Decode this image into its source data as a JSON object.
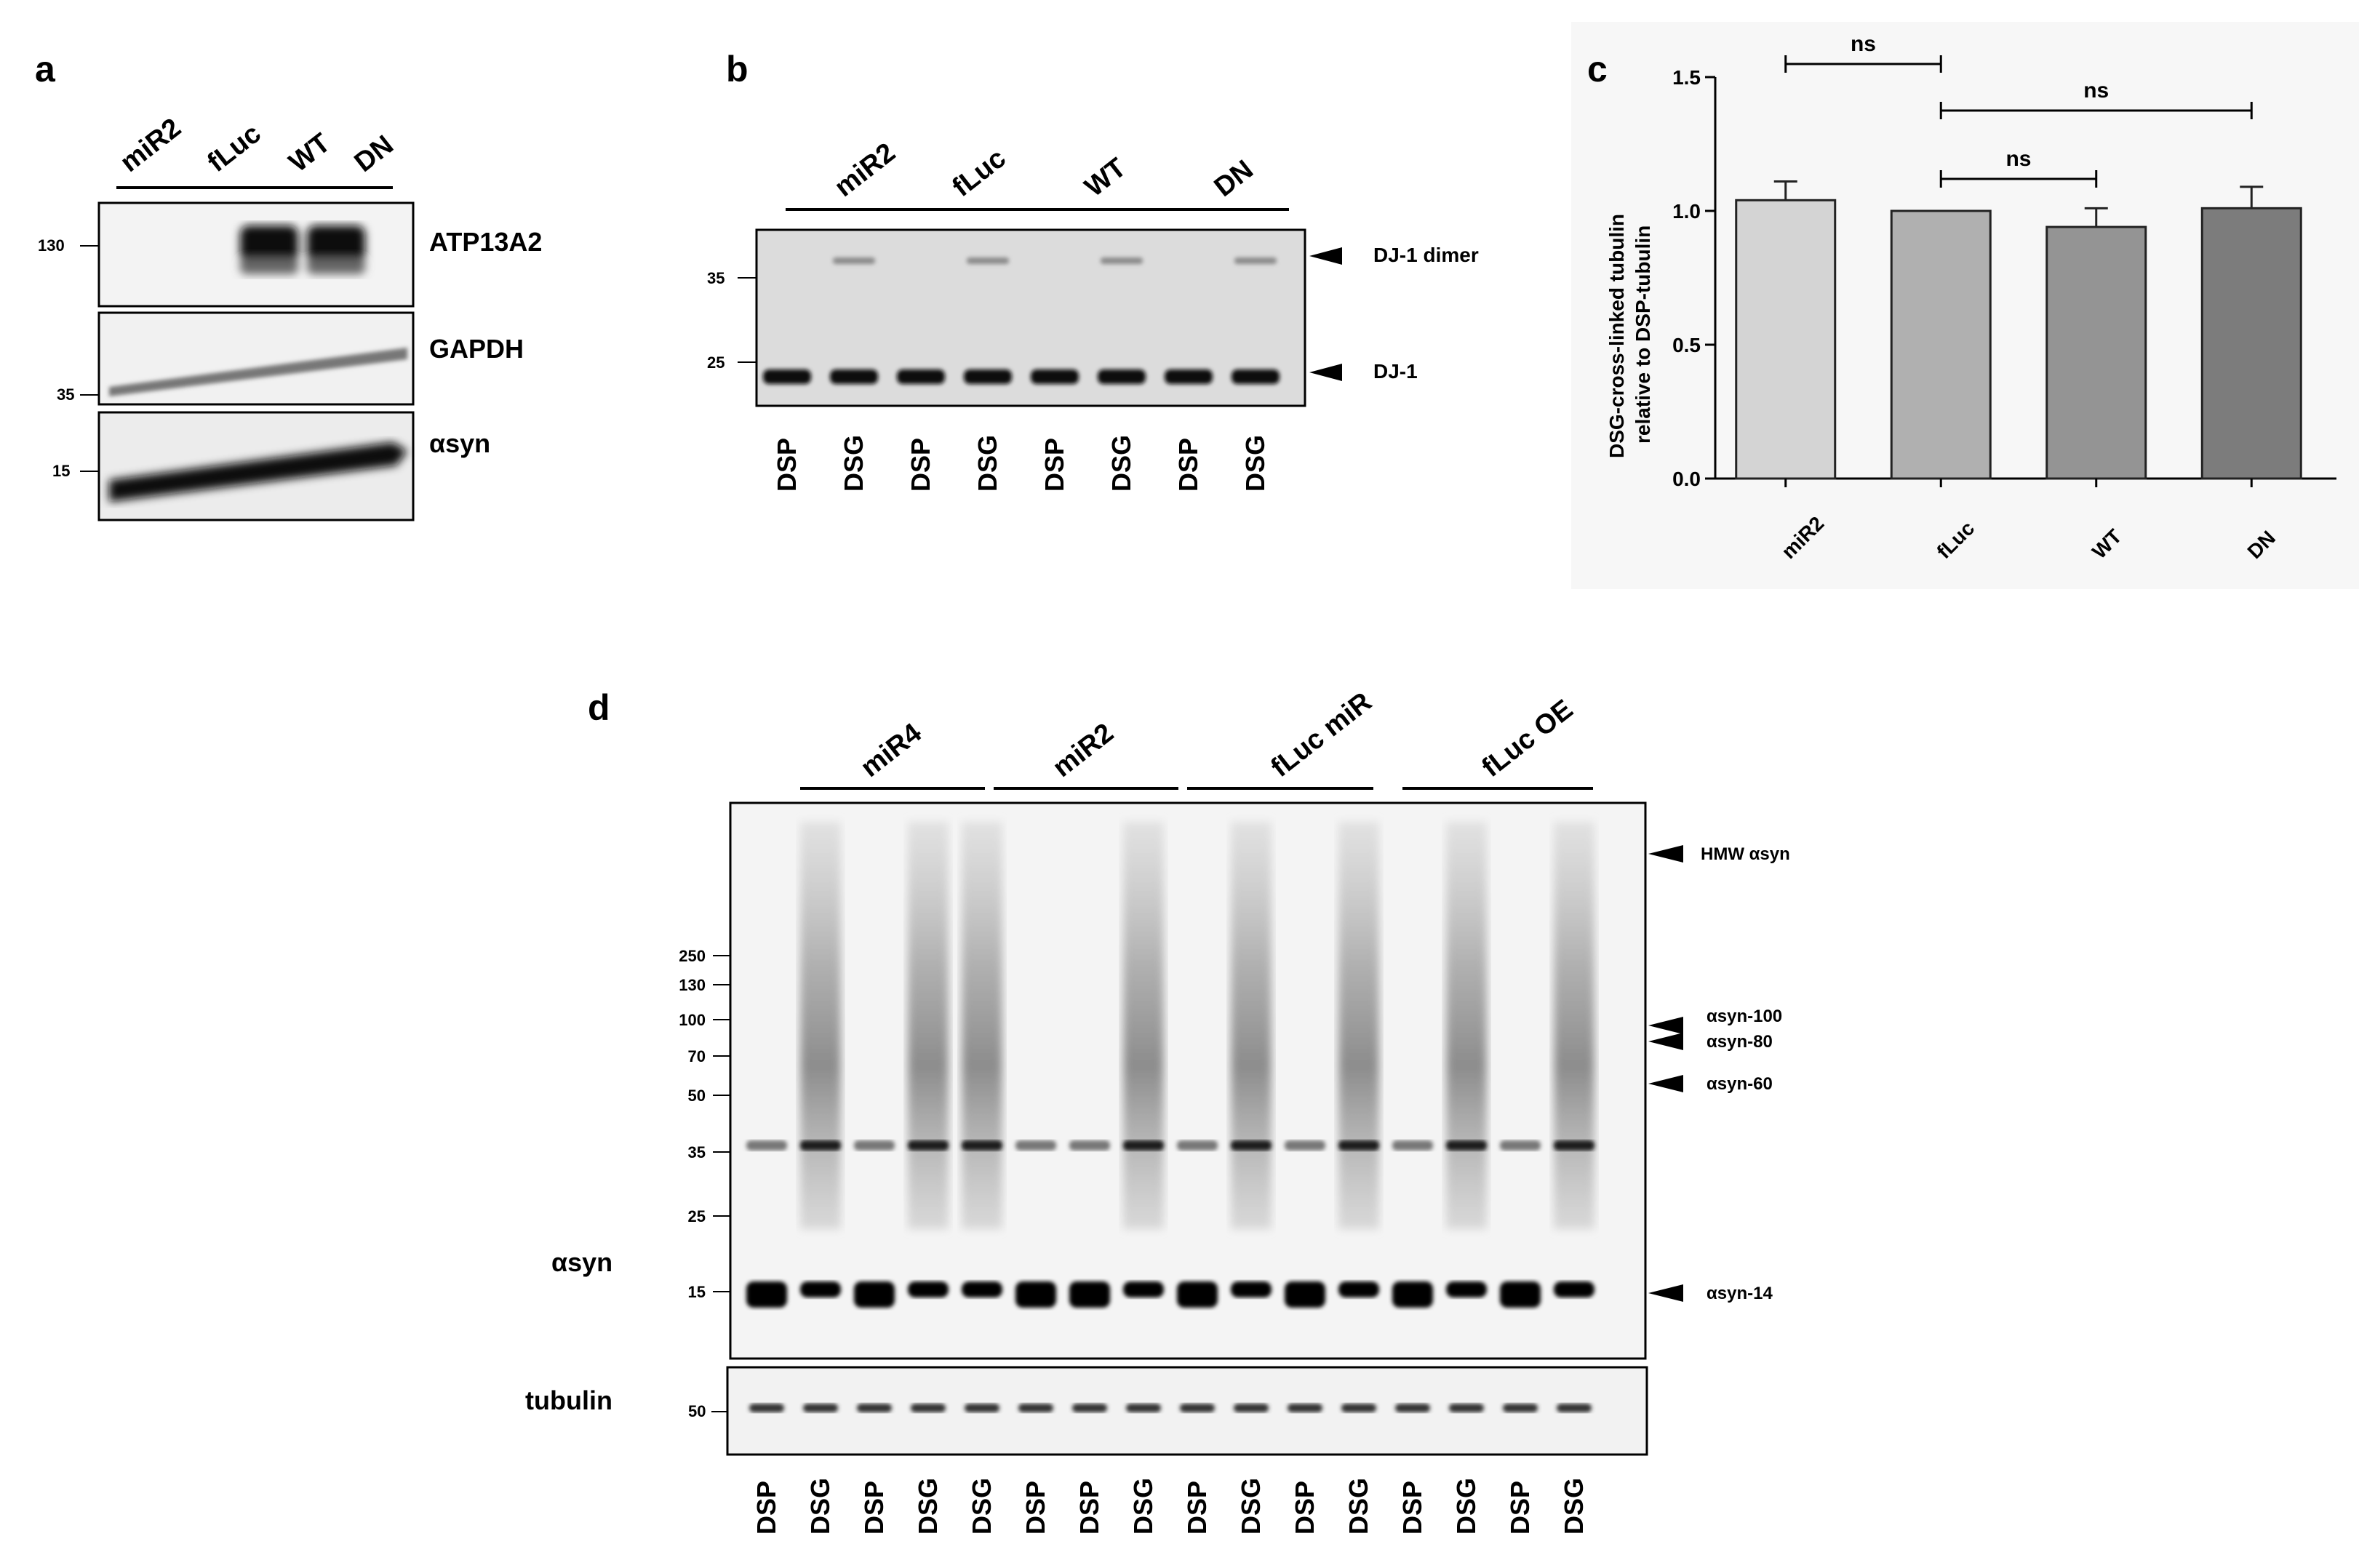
{
  "panels": {
    "a": {
      "label": "a",
      "groups": [
        "miR2",
        "fLuc",
        "WT",
        "DN"
      ],
      "blots": [
        {
          "name": "ATP13A2",
          "marker": "130"
        },
        {
          "name": "GAPDH",
          "marker": "35"
        },
        {
          "name": "αsyn",
          "marker": "15"
        }
      ]
    },
    "b": {
      "label": "b",
      "groups": [
        "miR2",
        "fLuc",
        "WT",
        "DN"
      ],
      "markers": [
        "35",
        "25"
      ],
      "arrows": [
        "DJ-1 dimer",
        "DJ-1"
      ],
      "lanes": [
        "DSP",
        "DSG",
        "DSP",
        "DSG",
        "DSP",
        "DSG",
        "DSP",
        "DSG"
      ]
    },
    "d": {
      "label": "d",
      "groups": [
        "miR4",
        "miR2",
        "fLuc miR",
        "fLuc OE"
      ],
      "markers": [
        "250",
        "130",
        "100",
        "70",
        "50",
        "35",
        "25",
        "15"
      ],
      "tubulin_marker": "50",
      "blot_labels": [
        "αsyn",
        "tubulin"
      ],
      "arrows": [
        "HMW αsyn",
        "αsyn-100",
        "αsyn-80",
        "αsyn-60",
        "αsyn-14"
      ],
      "lanes": [
        "DSP",
        "DSG",
        "DSP",
        "DSG",
        "DSG",
        "DSP",
        "DSP",
        "DSG",
        "DSP",
        "DSG",
        "DSP",
        "DSG",
        "DSP",
        "DSG",
        "DSP",
        "DSG"
      ]
    }
  },
  "chart_data": {
    "type": "bar",
    "panel_label": "c",
    "categories": [
      "miR2",
      "fLuc",
      "WT",
      "DN"
    ],
    "values": [
      1.04,
      1.0,
      0.94,
      1.01
    ],
    "errors": [
      0.07,
      0.0,
      0.07,
      0.08
    ],
    "bar_colors": [
      "#d4d4d4",
      "#b0b0b0",
      "#949494",
      "#7c7c7c"
    ],
    "ylabel_lines": [
      "DSG-cross-linked tubulin",
      "relative to DSP-tubulin"
    ],
    "yticks": [
      "0.0",
      "0.5",
      "1.0",
      "1.5"
    ],
    "ylim": [
      0,
      1.5
    ],
    "significance": [
      {
        "from": "miR2",
        "to": "fLuc",
        "label": "ns"
      },
      {
        "from": "fLuc",
        "to": "DN",
        "label": "ns"
      },
      {
        "from": "fLuc",
        "to": "WT",
        "label": "ns"
      }
    ]
  }
}
